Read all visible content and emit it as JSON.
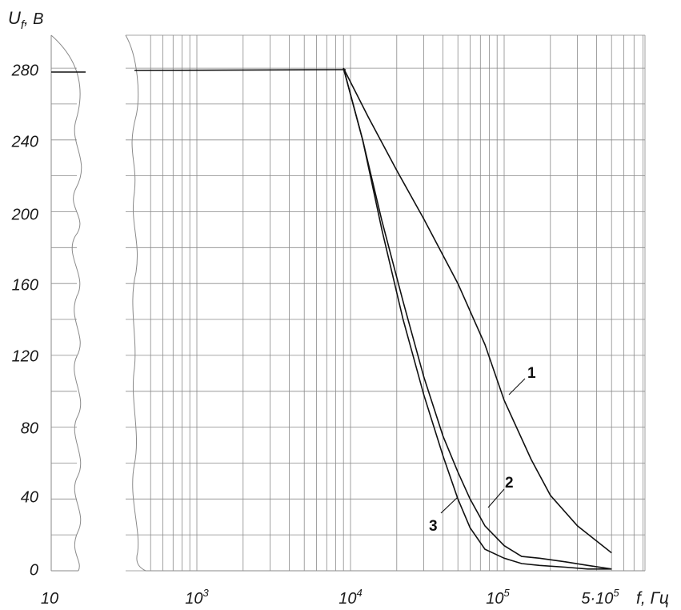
{
  "chart_data": {
    "type": "line",
    "title": "",
    "ylabel_main": "U",
    "ylabel_sub": "f",
    "ylabel_unit": ", B",
    "xlabel_main": "f",
    "xlabel_unit": ", Гц",
    "x_scale": "log",
    "y_ticks": [
      "0",
      "40",
      "80",
      "120",
      "160",
      "200",
      "240",
      "280"
    ],
    "x_tick_labels": [
      {
        "base": "10",
        "exp": ""
      },
      {
        "base": "10",
        "exp": "3"
      },
      {
        "base": "10",
        "exp": "4"
      },
      {
        "base": "10",
        "exp": "5"
      },
      {
        "base": "5·10",
        "exp": "5"
      }
    ],
    "ylim": [
      0,
      300
    ],
    "grid": true,
    "axis_break": true,
    "flat_segment": {
      "y": 280
    },
    "series": [
      {
        "name": "1",
        "x": [
          9000,
          13000,
          20000,
          30000,
          50000,
          75000,
          100000,
          150000,
          200000,
          300000,
          500000
        ],
        "y": [
          280,
          253,
          223,
          196,
          160,
          126,
          95,
          62,
          42,
          25,
          10
        ]
      },
      {
        "name": "2",
        "x": [
          9000,
          12000,
          16000,
          22000,
          30000,
          40000,
          50000,
          60000,
          75000,
          100000,
          130000,
          170000,
          250000,
          350000,
          500000
        ],
        "y": [
          280,
          240,
          195,
          150,
          108,
          75,
          55,
          40,
          25,
          14,
          8,
          7,
          5,
          3,
          1
        ]
      },
      {
        "name": "3",
        "x": [
          9000,
          12000,
          16000,
          22000,
          30000,
          40000,
          50000,
          60000,
          75000,
          100000,
          130000,
          170000,
          250000,
          350000,
          500000
        ],
        "y": [
          280,
          240,
          190,
          140,
          98,
          64,
          40,
          24,
          12,
          7,
          4,
          3,
          2,
          1,
          1
        ]
      }
    ]
  }
}
